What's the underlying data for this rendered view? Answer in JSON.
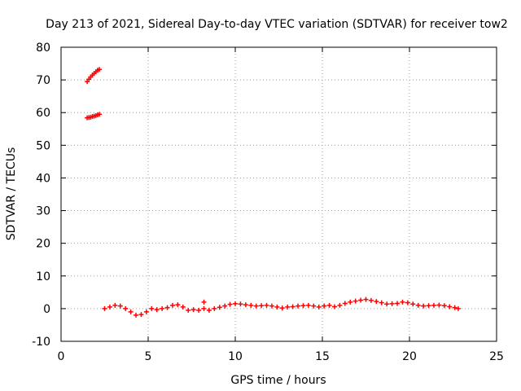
{
  "chart_data": {
    "type": "scatter",
    "title": "Day 213 of 2021, Sidereal Day-to-day VTEC variation (SDTVAR) for receiver tow2",
    "xlabel": "GPS time / hours",
    "ylabel": "SDTVAR / TECUs",
    "xlim": [
      0,
      25
    ],
    "ylim": [
      -10,
      80
    ],
    "xticks": [
      0,
      5,
      10,
      15,
      20,
      25
    ],
    "yticks": [
      -10,
      0,
      10,
      20,
      30,
      40,
      50,
      60,
      70,
      80
    ],
    "grid": true,
    "marker_color": "#ff0000",
    "series": [
      {
        "name": "SDTVAR",
        "x": [
          1.5,
          1.6,
          1.7,
          1.8,
          1.9,
          2.0,
          2.1,
          2.2,
          1.5,
          1.6,
          1.7,
          1.8,
          1.9,
          2.0,
          2.1,
          2.2,
          2.5,
          2.8,
          3.1,
          3.4,
          3.7,
          4.0,
          4.3,
          4.6,
          4.9,
          5.2,
          5.5,
          5.8,
          6.1,
          6.4,
          6.7,
          7.0,
          7.3,
          7.6,
          7.9,
          8.2,
          8.5,
          8.8,
          9.1,
          9.4,
          9.7,
          10.0,
          10.3,
          10.6,
          10.9,
          11.2,
          11.5,
          11.8,
          12.1,
          12.4,
          12.7,
          13.0,
          13.3,
          13.6,
          13.9,
          14.2,
          14.5,
          14.8,
          15.1,
          15.4,
          15.7,
          16.0,
          16.3,
          16.6,
          16.9,
          17.2,
          17.5,
          17.8,
          18.1,
          18.4,
          18.7,
          19.0,
          19.3,
          19.6,
          19.9,
          20.2,
          20.5,
          20.8,
          21.1,
          21.4,
          21.7,
          22.0,
          22.3,
          22.6,
          22.8,
          8.2
        ],
        "y": [
          69.5,
          70.2,
          70.9,
          71.5,
          72.0,
          72.5,
          73.0,
          73.2,
          58.4,
          58.5,
          58.6,
          58.8,
          58.9,
          59.1,
          59.3,
          59.5,
          0.0,
          0.5,
          1.0,
          0.8,
          0.0,
          -1.0,
          -2.0,
          -1.8,
          -1.0,
          0.0,
          -0.3,
          0.0,
          0.3,
          1.0,
          1.2,
          0.5,
          -0.5,
          -0.3,
          -0.5,
          0.0,
          -0.5,
          0.0,
          0.4,
          0.8,
          1.3,
          1.5,
          1.4,
          1.2,
          1.0,
          0.8,
          0.9,
          1.0,
          0.8,
          0.5,
          0.2,
          0.5,
          0.6,
          0.8,
          0.9,
          1.0,
          0.8,
          0.5,
          0.8,
          1.0,
          0.6,
          1.0,
          1.6,
          2.0,
          2.3,
          2.6,
          2.8,
          2.5,
          2.2,
          1.8,
          1.4,
          1.5,
          1.6,
          2.0,
          1.8,
          1.4,
          1.0,
          0.8,
          0.9,
          1.0,
          1.1,
          0.9,
          0.6,
          0.3,
          0.0,
          2.0
        ]
      }
    ]
  }
}
